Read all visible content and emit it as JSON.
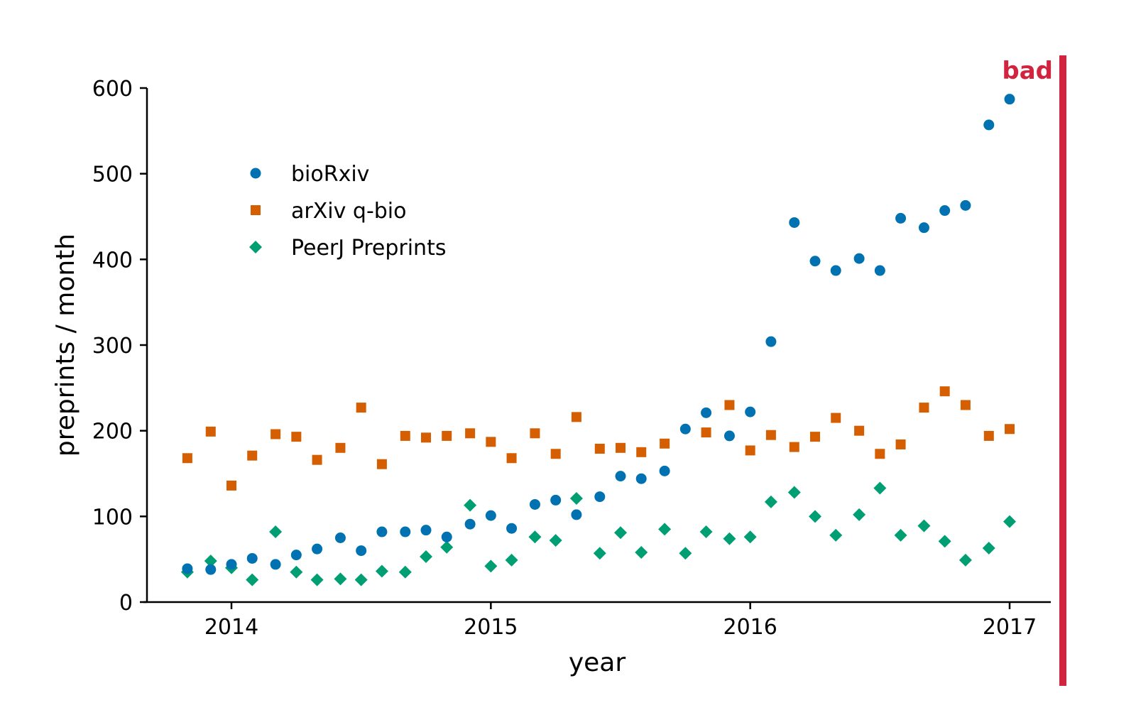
{
  "stamp": {
    "text": "bad",
    "color": "#d1243f"
  },
  "chart_data": {
    "type": "scatter",
    "xlabel": "year",
    "ylabel": "preprints / month",
    "xlim": [
      2013.68,
      2017.15
    ],
    "ylim": [
      0,
      600
    ],
    "x_ticks": [
      2014,
      2015,
      2016,
      2017
    ],
    "y_ticks": [
      0,
      100,
      200,
      300,
      400,
      500,
      600
    ],
    "grid": false,
    "legend_position": "top-left",
    "x": [
      2013.83,
      2013.92,
      2014.0,
      2014.08,
      2014.17,
      2014.25,
      2014.33,
      2014.42,
      2014.5,
      2014.58,
      2014.67,
      2014.75,
      2014.83,
      2014.92,
      2015.0,
      2015.08,
      2015.17,
      2015.25,
      2015.33,
      2015.42,
      2015.5,
      2015.58,
      2015.67,
      2015.75,
      2015.83,
      2015.92,
      2016.0,
      2016.08,
      2016.17,
      2016.25,
      2016.33,
      2016.42,
      2016.5,
      2016.58,
      2016.67,
      2016.75,
      2016.83,
      2016.92,
      2017.0
    ],
    "series": [
      {
        "name": "bioRxiv",
        "marker": "circle",
        "color": "#0072b2",
        "values": [
          39,
          38,
          44,
          51,
          44,
          55,
          62,
          75,
          60,
          82,
          82,
          84,
          76,
          91,
          101,
          86,
          114,
          119,
          102,
          123,
          147,
          144,
          153,
          202,
          221,
          194,
          222,
          304,
          443,
          398,
          387,
          401,
          387,
          448,
          437,
          457,
          463,
          557,
          587
        ]
      },
      {
        "name": "arXiv q-bio",
        "marker": "square",
        "color": "#d55e00",
        "values": [
          168,
          199,
          136,
          171,
          196,
          193,
          166,
          180,
          227,
          161,
          194,
          192,
          194,
          197,
          187,
          168,
          197,
          173,
          216,
          179,
          180,
          175,
          185,
          null,
          198,
          230,
          177,
          195,
          181,
          193,
          215,
          200,
          173,
          184,
          227,
          246,
          230,
          194,
          202
        ]
      },
      {
        "name": "PeerJ Preprints",
        "marker": "diamond",
        "color": "#009e73",
        "values": [
          35,
          48,
          40,
          26,
          82,
          35,
          26,
          27,
          26,
          36,
          35,
          53,
          64,
          113,
          42,
          49,
          76,
          72,
          121,
          57,
          81,
          58,
          85,
          57,
          82,
          74,
          76,
          117,
          128,
          100,
          78,
          102,
          133,
          78,
          89,
          71,
          49,
          63,
          94
        ]
      }
    ]
  }
}
